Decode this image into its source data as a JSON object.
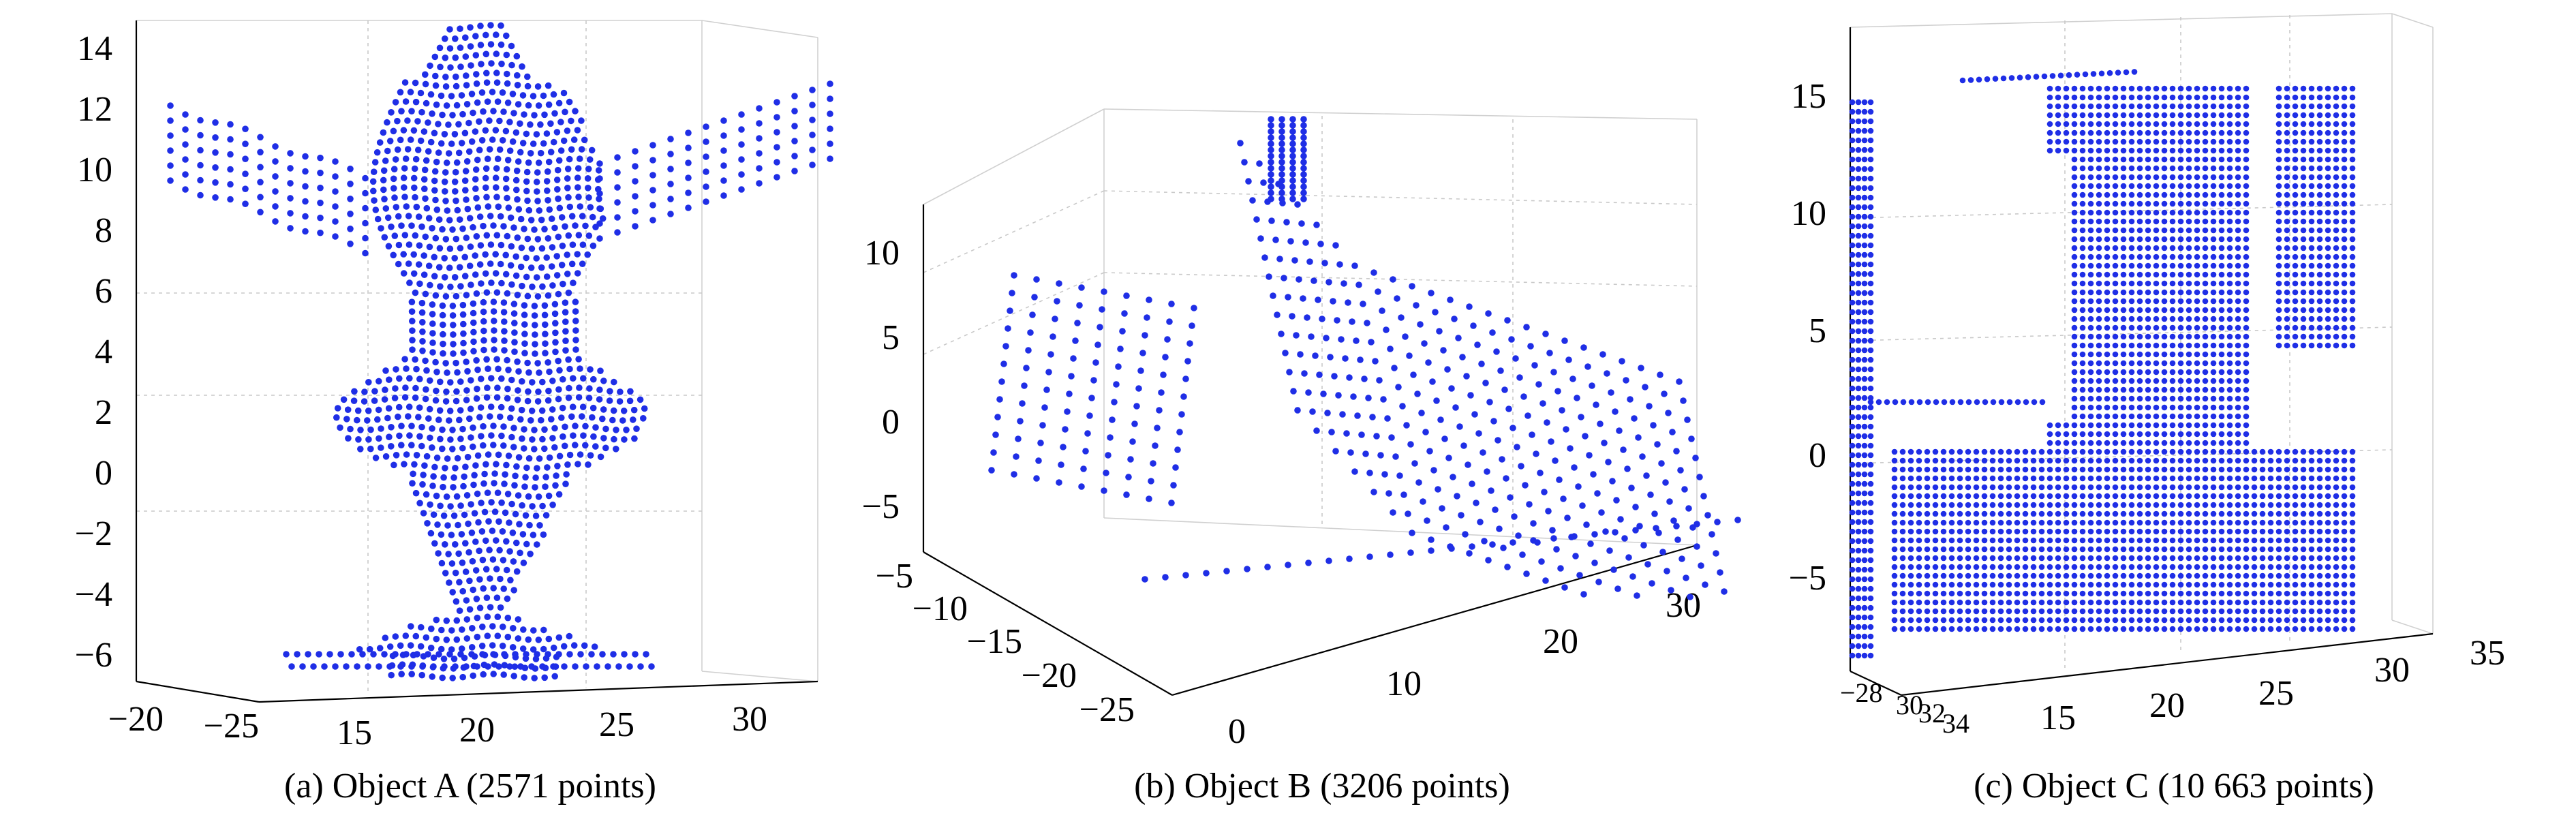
{
  "chart_data": [
    {
      "type": "scatter",
      "caption": "(a) Object A (2571 points)",
      "point_color": "#1f2ee6",
      "z_ticks": [
        "14",
        "12",
        "10",
        "8",
        "6",
        "4",
        "2",
        "0",
        "−2",
        "−4",
        "−6"
      ],
      "x_ticks": [
        "15",
        "20",
        "25",
        "30"
      ],
      "y_ticks": [
        "−20",
        "−25"
      ],
      "points": 2571
    },
    {
      "type": "scatter",
      "caption": "(b) Object B (3206 points)",
      "point_color": "#1f2ee6",
      "z_ticks": [
        "10",
        "5",
        "0",
        "−5"
      ],
      "y_ticks": [
        "−5",
        "−10",
        "−15",
        "−20",
        "−25"
      ],
      "x_ticks": [
        "0",
        "10",
        "20",
        "30"
      ],
      "points": 3206
    },
    {
      "type": "scatter",
      "caption": "(c) Object C (10 663 points)",
      "point_color": "#1f2ee6",
      "z_ticks": [
        "15",
        "10",
        "5",
        "0",
        "−5"
      ],
      "y_ticks": [
        "−28",
        "30",
        "32",
        "34"
      ],
      "x_ticks": [
        "15",
        "20",
        "25",
        "30",
        "35"
      ],
      "points": 10663
    }
  ]
}
